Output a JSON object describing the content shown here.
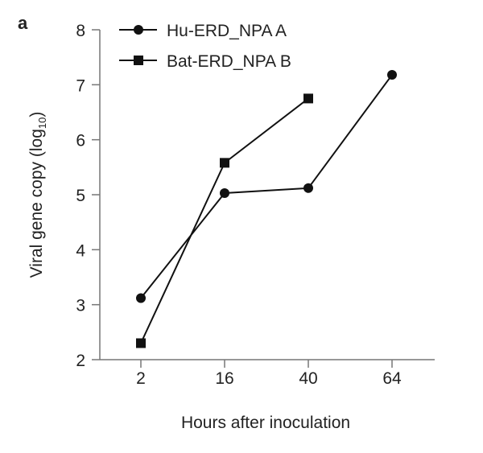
{
  "chart_data": {
    "type": "line",
    "panel_label": "a",
    "xlabel": "Hours after inoculation",
    "ylabel": "Viral gene copy (log",
    "ylabel_sub": "10",
    "ylabel_end": ")",
    "categories": [
      "2",
      "16",
      "40",
      "64"
    ],
    "ylim": [
      2,
      8
    ],
    "yticks": [
      2,
      3,
      4,
      5,
      6,
      7,
      8
    ],
    "grid": false,
    "legend_placement": "top-left",
    "series": [
      {
        "name": "Hu-ERD_NPA A",
        "marker": "circle",
        "color": "#111111",
        "values": [
          3.12,
          5.03,
          5.12,
          7.18
        ]
      },
      {
        "name": "Bat-ERD_NPA B",
        "marker": "square",
        "color": "#111111",
        "values": [
          2.3,
          5.58,
          6.75,
          null
        ]
      }
    ]
  }
}
